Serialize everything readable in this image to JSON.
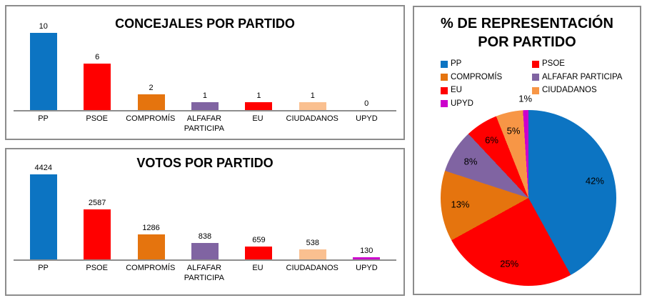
{
  "page": {
    "background": "#FFFFFF",
    "panel_border_color": "#8C8C8C",
    "axis_line_color": "#8E8E8E",
    "text_color": "#000000"
  },
  "chart_data": [
    {
      "id": "concejales",
      "type": "bar",
      "title": "CONCEJALES POR PARTIDO",
      "categories": [
        "PP",
        "PSOE",
        "COMPROMÍS",
        "ALFAFAR PARTICIPA",
        "EU",
        "CIUDADANOS",
        "UPYD"
      ],
      "values": [
        10,
        6,
        2,
        1,
        1,
        1,
        0
      ],
      "value_labels": [
        "10",
        "6",
        "2",
        "1",
        "1",
        "1",
        "0"
      ],
      "bar_colors": [
        "#0C74C2",
        "#FF0000",
        "#E5740E",
        "#8064A2",
        "#FF0000",
        "#FAC090",
        "#CC00CC"
      ],
      "xlabel": "",
      "ylabel": "",
      "ylim": [
        0,
        10
      ],
      "grid": false,
      "legend": false,
      "value_labels_position": "above-bars"
    },
    {
      "id": "votos",
      "type": "bar",
      "title": "VOTOS POR PARTIDO",
      "categories": [
        "PP",
        "PSOE",
        "COMPROMÍS",
        "ALFAFAR PARTICIPA",
        "EU",
        "CIUDADANOS",
        "UPYD"
      ],
      "values": [
        4424,
        2587,
        1286,
        838,
        659,
        538,
        130
      ],
      "value_labels": [
        "4424",
        "2587",
        "1286",
        "838",
        "659",
        "538",
        "130"
      ],
      "bar_colors": [
        "#0C74C2",
        "#FF0000",
        "#E5740E",
        "#8064A2",
        "#FF0000",
        "#FAC090",
        "#CC00CC"
      ],
      "xlabel": "",
      "ylabel": "",
      "ylim": [
        0,
        4424
      ],
      "grid": false,
      "legend": false,
      "value_labels_position": "above-bars"
    },
    {
      "id": "representacion",
      "type": "pie",
      "title": "% DE REPRESENTACIÓN POR PARTIDO",
      "title_lines": [
        "% DE REPRESENTACIÓN",
        "POR PARTIDO"
      ],
      "start_angle_deg": 0,
      "direction": "clockwise",
      "slices": [
        {
          "label": "PP",
          "value": 42,
          "pct_label": "42%",
          "color": "#0C74C2",
          "label_outside": false
        },
        {
          "label": "PSOE",
          "value": 25,
          "pct_label": "25%",
          "color": "#FF0000",
          "label_outside": false
        },
        {
          "label": "COMPROMÍS",
          "value": 13,
          "pct_label": "13%",
          "color": "#E5740E",
          "label_outside": false
        },
        {
          "label": "ALFAFAR PARTICIPA",
          "value": 8,
          "pct_label": "8%",
          "color": "#8064A2",
          "label_outside": false
        },
        {
          "label": "EU",
          "value": 6,
          "pct_label": "6%",
          "color": "#FF0000",
          "label_outside": false
        },
        {
          "label": "CIUDADANOS",
          "value": 5,
          "pct_label": "5%",
          "color": "#F79646",
          "label_outside": false
        },
        {
          "label": "UPYD",
          "value": 1,
          "pct_label": "1%",
          "color": "#CC00CC",
          "label_outside": true
        }
      ],
      "legend_position": "top",
      "legend_columns": 2,
      "legend": [
        {
          "label": "PP",
          "color": "#0C74C2"
        },
        {
          "label": "PSOE",
          "color": "#FF0000"
        },
        {
          "label": "COMPROMÍS",
          "color": "#E5740E"
        },
        {
          "label": "ALFAFAR PARTICIPA",
          "color": "#8064A2"
        },
        {
          "label": "EU",
          "color": "#FF0000"
        },
        {
          "label": "CIUDADANOS",
          "color": "#F79646"
        },
        {
          "label": "UPYD",
          "color": "#CC00CC"
        }
      ]
    }
  ]
}
